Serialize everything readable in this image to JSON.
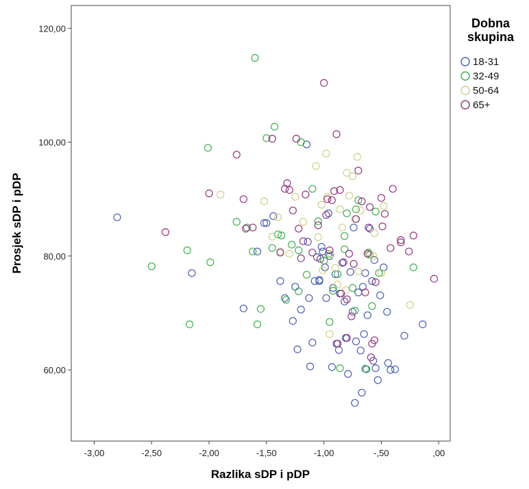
{
  "chart_data": {
    "type": "scatter",
    "xlabel": "Razlika sDP i pDP",
    "ylabel": "Prosjek sDP i pDP",
    "xlim": [
      -3.2,
      0.1
    ],
    "ylim": [
      47.5,
      124.0
    ],
    "x_ticks": [
      -3.0,
      -2.5,
      -2.0,
      -1.5,
      -1.0,
      -0.5,
      0.0
    ],
    "x_tick_labels": [
      "-3,00",
      "-2,50",
      "-2,00",
      "-1,50",
      "-1,00",
      "-,50",
      ",00"
    ],
    "y_ticks": [
      60,
      80,
      100,
      120
    ],
    "y_tick_labels": [
      "60,00",
      "80,00",
      "100,00",
      "120,00"
    ],
    "grid": false,
    "legend": {
      "title_lines": [
        "Dobna",
        "skupina"
      ],
      "placement": "right"
    },
    "series": [
      {
        "name": "18-31",
        "color": "#4a5fb0",
        "points": [
          [
            -2.8,
            86.8
          ],
          [
            -2.15,
            77.0
          ],
          [
            -1.7,
            70.8
          ],
          [
            -1.58,
            80.8
          ],
          [
            -1.52,
            85.8
          ],
          [
            -1.5,
            85.8
          ],
          [
            -1.38,
            75.6
          ],
          [
            -1.34,
            72.6
          ],
          [
            -1.27,
            68.6
          ],
          [
            -1.25,
            74.6
          ],
          [
            -1.23,
            63.6
          ],
          [
            -1.2,
            70.6
          ],
          [
            -1.15,
            99.6
          ],
          [
            -1.14,
            82.5
          ],
          [
            -1.13,
            72.6
          ],
          [
            -1.12,
            60.6
          ],
          [
            -1.1,
            64.8
          ],
          [
            -1.08,
            75.6
          ],
          [
            -1.06,
            79.8
          ],
          [
            -1.04,
            75.6
          ],
          [
            -1.02,
            81.6
          ],
          [
            -1.01,
            80.8
          ],
          [
            -0.99,
            78.0
          ],
          [
            -0.98,
            72.6
          ],
          [
            -0.96,
            87.5
          ],
          [
            -0.95,
            80.0
          ],
          [
            -0.93,
            60.5
          ],
          [
            -0.92,
            74.4
          ],
          [
            -0.9,
            76.8
          ],
          [
            -0.89,
            64.6
          ],
          [
            -0.87,
            63.5
          ],
          [
            -0.86,
            73.4
          ],
          [
            -0.84,
            78.8
          ],
          [
            -0.82,
            72.0
          ],
          [
            -0.81,
            65.6
          ],
          [
            -0.79,
            59.3
          ],
          [
            -0.77,
            77.2
          ],
          [
            -0.75,
            70.2
          ],
          [
            -0.73,
            54.2
          ],
          [
            -0.72,
            65.0
          ],
          [
            -0.7,
            73.6
          ],
          [
            -0.68,
            63.4
          ],
          [
            -0.67,
            56.0
          ],
          [
            -0.66,
            74.6
          ],
          [
            -0.65,
            66.3
          ],
          [
            -0.64,
            77.0
          ],
          [
            -0.63,
            60.1
          ],
          [
            -0.62,
            69.6
          ],
          [
            -0.6,
            84.8
          ],
          [
            -0.58,
            75.6
          ],
          [
            -0.57,
            61.6
          ],
          [
            -0.56,
            79.3
          ],
          [
            -0.55,
            60.3
          ],
          [
            -0.53,
            58.2
          ],
          [
            -0.51,
            73.1
          ],
          [
            -0.48,
            78.0
          ],
          [
            -0.45,
            70.2
          ],
          [
            -0.44,
            61.2
          ],
          [
            -0.42,
            60.0
          ],
          [
            -0.38,
            60.1
          ],
          [
            -0.3,
            66.0
          ],
          [
            -0.14,
            68.0
          ],
          [
            -1.44,
            87.0
          ],
          [
            -1.04,
            75.8
          ],
          [
            -0.74,
            85.0
          ]
        ]
      },
      {
        "name": "32-49",
        "color": "#3fae52",
        "points": [
          [
            -2.5,
            78.2
          ],
          [
            -2.19,
            81.0
          ],
          [
            -2.17,
            68.0
          ],
          [
            -2.01,
            99.0
          ],
          [
            -1.99,
            78.9
          ],
          [
            -1.76,
            86.0
          ],
          [
            -1.67,
            85.0
          ],
          [
            -1.62,
            80.8
          ],
          [
            -1.6,
            114.8
          ],
          [
            -1.58,
            68.0
          ],
          [
            -1.55,
            70.7
          ],
          [
            -1.5,
            100.7
          ],
          [
            -1.45,
            81.4
          ],
          [
            -1.43,
            102.7
          ],
          [
            -1.4,
            83.8
          ],
          [
            -1.37,
            83.6
          ],
          [
            -1.33,
            72.3
          ],
          [
            -1.28,
            82.0
          ],
          [
            -1.22,
            73.8
          ],
          [
            -1.2,
            100.0
          ],
          [
            -1.15,
            76.7
          ],
          [
            -1.1,
            91.8
          ],
          [
            -1.05,
            86.1
          ],
          [
            -1.0,
            79.2
          ],
          [
            -0.96,
            80.4
          ],
          [
            -0.95,
            68.4
          ],
          [
            -0.92,
            73.9
          ],
          [
            -0.88,
            76.8
          ],
          [
            -0.86,
            60.3
          ],
          [
            -0.82,
            81.2
          ],
          [
            -0.8,
            87.5
          ],
          [
            -0.75,
            74.4
          ],
          [
            -0.73,
            70.4
          ],
          [
            -0.72,
            88.2
          ],
          [
            -0.7,
            89.8
          ],
          [
            -0.64,
            60.2
          ],
          [
            -0.61,
            80.6
          ],
          [
            -0.6,
            80.2
          ],
          [
            -0.58,
            71.2
          ],
          [
            -0.55,
            87.8
          ],
          [
            -0.52,
            77.0
          ],
          [
            -0.22,
            78.0
          ],
          [
            -1.22,
            81.0
          ],
          [
            -0.82,
            83.5
          ]
        ]
      },
      {
        "name": "50-64",
        "color": "#cccf8c",
        "points": [
          [
            -1.9,
            90.8
          ],
          [
            -1.52,
            89.6
          ],
          [
            -1.45,
            83.4
          ],
          [
            -1.4,
            86.8
          ],
          [
            -1.38,
            80.8
          ],
          [
            -1.25,
            90.4
          ],
          [
            -1.18,
            86.0
          ],
          [
            -1.05,
            83.3
          ],
          [
            -1.02,
            89.0
          ],
          [
            -1.01,
            77.5
          ],
          [
            -0.98,
            98.0
          ],
          [
            -0.97,
            90.4
          ],
          [
            -0.95,
            66.3
          ],
          [
            -0.94,
            80.3
          ],
          [
            -0.9,
            77.9
          ],
          [
            -0.88,
            75.0
          ],
          [
            -0.86,
            88.2
          ],
          [
            -0.84,
            85.0
          ],
          [
            -0.8,
            94.6
          ],
          [
            -0.78,
            90.6
          ],
          [
            -0.75,
            94.0
          ],
          [
            -0.73,
            86.5
          ],
          [
            -0.71,
            97.4
          ],
          [
            -0.7,
            77.3
          ],
          [
            -0.68,
            88.0
          ],
          [
            -0.6,
            80.4
          ],
          [
            -0.57,
            80.0
          ],
          [
            -0.56,
            84.0
          ],
          [
            -0.5,
            77.0
          ],
          [
            -0.48,
            88.8
          ],
          [
            -0.25,
            71.4
          ],
          [
            -0.81,
            74.0
          ],
          [
            -1.07,
            95.8
          ],
          [
            -1.3,
            80.4
          ]
        ]
      },
      {
        "name": "65+",
        "color": "#93367f",
        "points": [
          [
            -2.38,
            84.2
          ],
          [
            -2.0,
            91.0
          ],
          [
            -1.76,
            97.8
          ],
          [
            -1.7,
            90.0
          ],
          [
            -1.68,
            84.8
          ],
          [
            -1.62,
            85.0
          ],
          [
            -1.45,
            100.6
          ],
          [
            -1.38,
            80.6
          ],
          [
            -1.34,
            91.8
          ],
          [
            -1.32,
            92.8
          ],
          [
            -1.3,
            91.6
          ],
          [
            -1.27,
            88.0
          ],
          [
            -1.24,
            100.6
          ],
          [
            -1.22,
            84.8
          ],
          [
            -1.2,
            79.6
          ],
          [
            -1.18,
            82.6
          ],
          [
            -1.1,
            80.6
          ],
          [
            -1.05,
            85.4
          ],
          [
            -1.03,
            79.5
          ],
          [
            -1.0,
            110.4
          ],
          [
            -0.98,
            87.2
          ],
          [
            -0.97,
            90.0
          ],
          [
            -0.95,
            81.0
          ],
          [
            -0.93,
            89.8
          ],
          [
            -0.91,
            91.4
          ],
          [
            -0.89,
            101.4
          ],
          [
            -0.88,
            64.6
          ],
          [
            -0.86,
            91.6
          ],
          [
            -0.85,
            73.4
          ],
          [
            -0.83,
            78.9
          ],
          [
            -0.8,
            65.6
          ],
          [
            -0.78,
            80.4
          ],
          [
            -0.76,
            69.4
          ],
          [
            -0.74,
            78.6
          ],
          [
            -0.72,
            86.5
          ],
          [
            -0.7,
            95.0
          ],
          [
            -0.67,
            89.6
          ],
          [
            -0.64,
            73.6
          ],
          [
            -0.62,
            80.4
          ],
          [
            -0.61,
            85.0
          ],
          [
            -0.6,
            88.6
          ],
          [
            -0.59,
            62.2
          ],
          [
            -0.58,
            64.6
          ],
          [
            -0.56,
            65.2
          ],
          [
            -0.55,
            75.4
          ],
          [
            -0.5,
            90.2
          ],
          [
            -0.49,
            85.2
          ],
          [
            -0.47,
            87.4
          ],
          [
            -0.42,
            81.4
          ],
          [
            -0.4,
            91.8
          ],
          [
            -0.33,
            82.8
          ],
          [
            -0.33,
            82.4
          ],
          [
            -0.26,
            80.8
          ],
          [
            -0.22,
            83.6
          ],
          [
            -0.04,
            76.0
          ],
          [
            -0.8,
            72.4
          ],
          [
            -1.16,
            90.8
          ]
        ]
      }
    ]
  }
}
